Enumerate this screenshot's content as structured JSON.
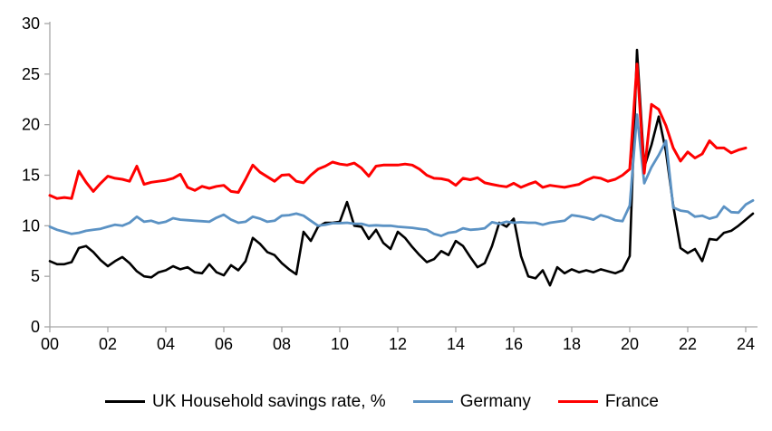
{
  "chart": {
    "legend": [
      {
        "key": "uk",
        "label": "UK Household savings rate, %",
        "color": "#000000"
      },
      {
        "key": "germany",
        "label": "Germany",
        "color": "#5b92c4"
      },
      {
        "key": "france",
        "label": "France",
        "color": "#ff0000"
      }
    ],
    "axis_color": "#a6a6a6",
    "chart_data": {
      "type": "line",
      "x_start": "2000Q1",
      "x_frequency": "quarterly",
      "x_tick_labels": [
        "00",
        "02",
        "04",
        "06",
        "08",
        "10",
        "12",
        "14",
        "16",
        "18",
        "20",
        "22",
        "24"
      ],
      "x_tick_every_quarters": 8,
      "ylim": [
        0,
        30
      ],
      "y_ticks": [
        0,
        5,
        10,
        15,
        20,
        25,
        30
      ],
      "grid": false,
      "legend_position": "bottom",
      "series": [
        {
          "name": "UK Household savings rate, %",
          "key": "uk",
          "color": "#000000",
          "stroke_width": 2.6,
          "values": [
            6.5,
            6.2,
            6.2,
            6.4,
            7.8,
            8.0,
            7.4,
            6.6,
            6.0,
            6.5,
            6.9,
            6.3,
            5.5,
            5.0,
            4.9,
            5.4,
            5.6,
            6.0,
            5.7,
            5.9,
            5.4,
            5.3,
            6.2,
            5.4,
            5.1,
            6.1,
            5.6,
            6.5,
            8.8,
            8.2,
            7.4,
            7.1,
            6.3,
            5.7,
            5.2,
            9.4,
            8.5,
            9.9,
            10.3,
            10.3,
            10.4,
            12.35,
            10.0,
            9.9,
            8.7,
            9.6,
            8.3,
            7.7,
            9.4,
            8.8,
            7.9,
            7.1,
            6.4,
            6.7,
            7.5,
            7.1,
            8.5,
            8.0,
            6.9,
            5.9,
            6.3,
            8.0,
            10.3,
            9.9,
            10.7,
            7.0,
            5.0,
            4.8,
            5.6,
            4.1,
            5.9,
            5.3,
            5.7,
            5.4,
            5.6,
            5.4,
            5.7,
            5.5,
            5.3,
            5.6,
            7.0,
            27.4,
            15.8,
            18.0,
            20.8,
            17.3,
            12.0,
            7.8,
            7.3,
            7.7,
            6.5,
            8.7,
            8.6,
            9.3,
            9.5,
            10.0,
            10.6,
            11.2
          ]
        },
        {
          "name": "Germany",
          "key": "germany",
          "color": "#5b92c4",
          "stroke_width": 2.8,
          "values": [
            9.9,
            9.6,
            9.4,
            9.2,
            9.3,
            9.5,
            9.6,
            9.7,
            9.9,
            10.1,
            10.0,
            10.3,
            10.9,
            10.4,
            10.5,
            10.25,
            10.4,
            10.75,
            10.6,
            10.55,
            10.5,
            10.45,
            10.4,
            10.8,
            11.1,
            10.6,
            10.3,
            10.4,
            10.9,
            10.7,
            10.4,
            10.5,
            11.0,
            11.05,
            11.2,
            11.0,
            10.5,
            10.0,
            10.1,
            10.25,
            10.25,
            10.3,
            10.2,
            10.2,
            10.0,
            10.05,
            10.0,
            10.0,
            9.9,
            9.85,
            9.8,
            9.7,
            9.6,
            9.2,
            9.0,
            9.3,
            9.4,
            9.75,
            9.6,
            9.65,
            9.75,
            10.35,
            10.2,
            10.4,
            10.3,
            10.35,
            10.3,
            10.3,
            10.1,
            10.3,
            10.4,
            10.5,
            11.05,
            10.95,
            10.8,
            10.6,
            11.05,
            10.85,
            10.55,
            10.45,
            12.0,
            21.0,
            14.2,
            15.8,
            17.0,
            18.4,
            11.8,
            11.5,
            11.4,
            10.9,
            11.0,
            10.7,
            10.9,
            11.9,
            11.35,
            11.3,
            12.1,
            12.5
          ]
        },
        {
          "name": "France",
          "key": "france",
          "color": "#ff0000",
          "stroke_width": 3,
          "values": [
            13.0,
            12.7,
            12.8,
            12.7,
            15.4,
            14.3,
            13.4,
            14.2,
            14.9,
            14.7,
            14.6,
            14.4,
            15.9,
            14.1,
            14.3,
            14.4,
            14.5,
            14.7,
            15.1,
            13.8,
            13.5,
            13.9,
            13.7,
            13.9,
            14.0,
            13.4,
            13.3,
            14.6,
            16.0,
            15.3,
            14.85,
            14.4,
            15.0,
            15.05,
            14.4,
            14.25,
            15.0,
            15.6,
            15.9,
            16.3,
            16.1,
            16.0,
            16.2,
            15.7,
            14.9,
            15.9,
            16.0,
            16.0,
            16.0,
            16.1,
            16.0,
            15.6,
            15.0,
            14.7,
            14.65,
            14.5,
            14.0,
            14.7,
            14.55,
            14.75,
            14.25,
            14.1,
            13.95,
            13.85,
            14.2,
            13.8,
            14.1,
            14.35,
            13.8,
            14.0,
            13.9,
            13.8,
            13.95,
            14.1,
            14.5,
            14.8,
            14.7,
            14.4,
            14.6,
            15.0,
            15.6,
            26.0,
            15.2,
            22.0,
            21.5,
            19.9,
            17.7,
            16.4,
            17.3,
            16.7,
            17.1,
            18.4,
            17.7,
            17.7,
            17.2,
            17.5,
            17.7
          ]
        }
      ]
    }
  }
}
